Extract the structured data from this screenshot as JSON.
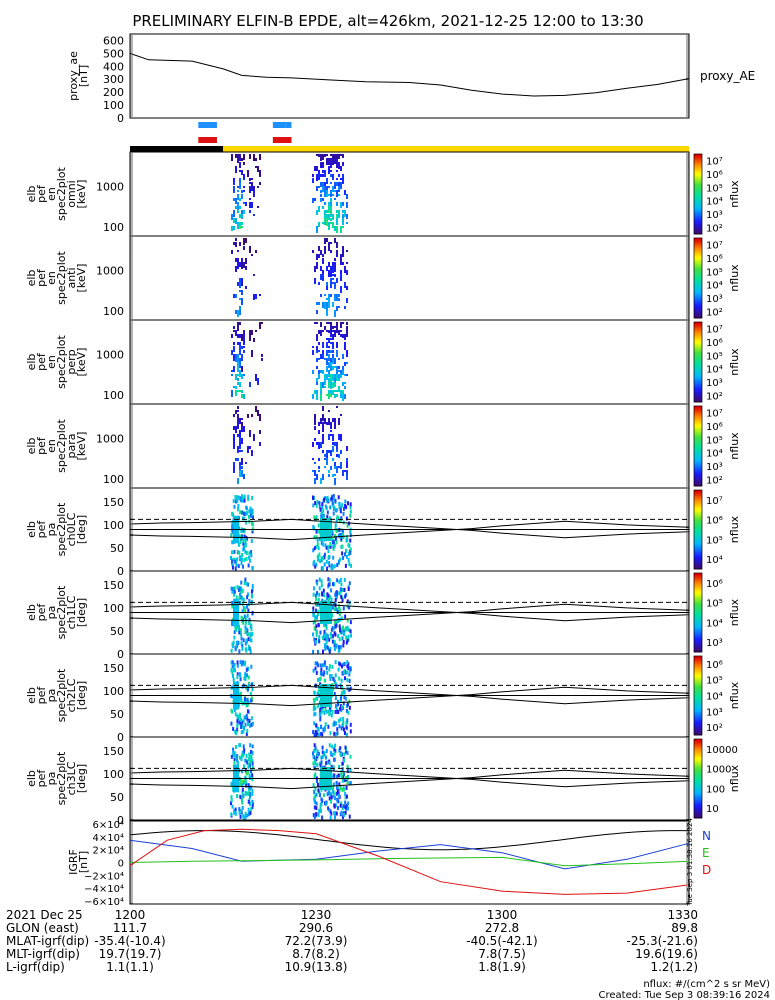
{
  "title": "PRELIMINARY ELFIN-B EPDE, alt=426km, 2021-12-25 12:00 to 13:30",
  "colors": {
    "blue_bar": "#1e90ff",
    "red_bar": "#dd1111",
    "black_bar": "#000000",
    "yellow_bar": "#ffd700",
    "N_line": "#1a3fd6",
    "E_line": "#22c21a",
    "D_line": "#dd1111",
    "text": "#000000"
  },
  "proxy_ae": {
    "ylabel_line1": "proxy_ae",
    "ylabel_line2": "[nT]",
    "legend": "proxy_AE",
    "ticks": [
      "0",
      "100",
      "200",
      "300",
      "400",
      "500",
      "600"
    ]
  },
  "spec_panels": [
    {
      "ylabel": [
        "elb",
        "pef",
        "en",
        "spec2plot",
        "omni",
        "[keV]"
      ],
      "ticks": [
        "100",
        "1000"
      ],
      "cbar_label": "nflux"
    },
    {
      "ylabel": [
        "elb",
        "pef",
        "en",
        "spec2plot",
        "anti",
        "[keV]"
      ],
      "ticks": [
        "100",
        "1000"
      ],
      "cbar_label": "nflux"
    },
    {
      "ylabel": [
        "elb",
        "pef",
        "en",
        "spec2plot",
        "perp",
        "[keV]"
      ],
      "ticks": [
        "100",
        "1000"
      ],
      "cbar_label": "nflux"
    },
    {
      "ylabel": [
        "elb",
        "pef",
        "en",
        "spec2plot",
        "para",
        "[keV]"
      ],
      "ticks": [
        "100",
        "1000"
      ],
      "cbar_label": "nflux"
    }
  ],
  "pa_panels": [
    {
      "ylabel": [
        "elb",
        "pef",
        "pa",
        "spec2plot",
        "ch0LC",
        "[deg]"
      ],
      "ticks": [
        "0",
        "50",
        "100",
        "150"
      ],
      "cbar_label": "nflux"
    },
    {
      "ylabel": [
        "elb",
        "pef",
        "pa",
        "spec2plot",
        "ch1LC",
        "[deg]"
      ],
      "ticks": [
        "0",
        "50",
        "100",
        "150"
      ],
      "cbar_label": "nflux"
    },
    {
      "ylabel": [
        "elb",
        "pef",
        "pa",
        "spec2plot",
        "ch2LC",
        "[deg]"
      ],
      "ticks": [
        "0",
        "50",
        "100",
        "150"
      ],
      "cbar_label": "nflux"
    },
    {
      "ylabel": [
        "elb",
        "pef",
        "pa",
        "spec2plot",
        "ch3LC",
        "[deg]"
      ],
      "ticks": [
        "0",
        "50",
        "100",
        "150"
      ],
      "cbar_label": "nflux"
    }
  ],
  "cbar_ticks": [
    [
      "10²",
      "10³",
      "10⁴",
      "10⁵",
      "10⁶",
      "10⁷"
    ],
    [
      "10²",
      "10³",
      "10⁴",
      "10⁵",
      "10⁶",
      "10⁷"
    ],
    [
      "10²",
      "10³",
      "10⁴",
      "10⁵",
      "10⁶",
      "10⁷"
    ],
    [
      "10²",
      "10³",
      "10⁴",
      "10⁵",
      "10⁶",
      "10⁷"
    ],
    [
      "10⁴",
      "10⁵",
      "10⁶",
      "10⁷"
    ],
    [
      "10³",
      "10⁴",
      "10⁵",
      "10⁶"
    ],
    [
      "10²",
      "10³",
      "10⁴",
      "10⁵",
      "10⁶"
    ],
    [
      "10",
      "100",
      "1000",
      "10000"
    ]
  ],
  "igrf": {
    "ylabel_line1": "IGRF",
    "ylabel_line2": "[nT]",
    "ticks": [
      "−6×10⁴",
      "−4×10⁴",
      "−2×10⁴",
      "0",
      "2×10⁴",
      "4×10⁴",
      "6×10⁴"
    ],
    "legend": [
      "N",
      "E",
      "D"
    ]
  },
  "footer": {
    "rows": [
      {
        "label": "2021 Dec 25",
        "values": [
          "1200",
          "1230",
          "1300",
          "1330"
        ]
      },
      {
        "label": "GLON (east)",
        "values": [
          "111.7",
          "290.6",
          "272.8",
          "89.8"
        ]
      },
      {
        "label": "MLAT-igrf(dip)",
        "values": [
          "-35.4(-10.4)",
          "72.2(73.9)",
          "-40.5(-42.1)",
          "-25.3(-21.6)"
        ]
      },
      {
        "label": "MLT-igrf(dip)",
        "values": [
          "19.7(19.7)",
          "8.7(8.2)",
          "7.8(7.5)",
          "19.6(19.6)"
        ]
      },
      {
        "label": "L-igrf(dip)",
        "values": [
          "1.1(1.1)",
          "10.9(13.8)",
          "1.8(1.9)",
          "1.2(1.2)"
        ]
      }
    ],
    "unit_note": "nflux: #/(cm^2 s sr MeV)",
    "created": "Created: Tue Sep  3 08:39:16 2024",
    "side_stamp": "Tue Sep  3 01:38:16 2024"
  },
  "chart_data": [
    {
      "type": "line",
      "title": "PRELIMINARY ELFIN-B EPDE, alt=426km, 2021-12-25 12:00 to 13:30",
      "ylabel": "proxy_ae [nT]",
      "ylim": [
        0,
        650
      ],
      "xlim": [
        "12:00",
        "13:30"
      ],
      "series": [
        {
          "name": "proxy_AE",
          "x": [
            "12:00",
            "12:03",
            "12:10",
            "12:15",
            "12:18",
            "12:22",
            "12:26",
            "12:32",
            "12:38",
            "12:45",
            "12:50",
            "12:55",
            "13:00",
            "13:05",
            "13:10",
            "13:15",
            "13:20",
            "13:25",
            "13:30"
          ],
          "values": [
            500,
            450,
            440,
            380,
            330,
            315,
            310,
            295,
            280,
            275,
            255,
            215,
            185,
            170,
            175,
            195,
            230,
            260,
            305
          ]
        }
      ]
    },
    {
      "type": "heatmap",
      "description_panels": [
        "omni",
        "anti",
        "perp",
        "para"
      ],
      "ylabel": "energy [keV]",
      "ylim": [
        60,
        7000
      ],
      "yscale": "log",
      "zlabel": "nflux",
      "zlim": [
        100,
        10000000
      ],
      "science_zone_bars": [
        {
          "color": "blue",
          "start": "12:11",
          "end": "12:14"
        },
        {
          "color": "blue",
          "start": "12:23",
          "end": "12:25"
        },
        {
          "color": "blue",
          "start": "12:25",
          "end": "12:26"
        },
        {
          "color": "red",
          "start": "12:11",
          "end": "12:14"
        },
        {
          "color": "red",
          "start": "12:23",
          "end": "12:26"
        }
      ],
      "orbit_bar": [
        {
          "color": "black",
          "start": "12:00",
          "end": "12:15"
        },
        {
          "color": "yellow",
          "start": "12:15",
          "end": "13:30"
        }
      ]
    },
    {
      "type": "heatmap",
      "description_panels": [
        "ch0LC",
        "ch1LC",
        "ch2LC",
        "ch3LC"
      ],
      "ylabel": "pitch angle [deg]",
      "ylim": [
        0,
        180
      ],
      "zlabel": "nflux",
      "loss_cone_lines": {
        "x": [
          "12:00",
          "12:05",
          "12:10",
          "12:20",
          "12:26",
          "12:40",
          "12:55",
          "13:00",
          "13:10",
          "13:20",
          "13:30"
        ],
        "lc_low": [
          78,
          76,
          75,
          72,
          68,
          80,
          92,
          98,
          108,
          100,
          95
        ],
        "lc_high": [
          102,
          104,
          105,
          108,
          112,
          100,
          88,
          82,
          72,
          80,
          85
        ]
      }
    },
    {
      "type": "line",
      "ylabel": "IGRF [nT]",
      "ylim": [
        -65000,
        65000
      ],
      "series": [
        {
          "name": "N",
          "x": [
            "12:00",
            "12:10",
            "12:18",
            "12:30",
            "12:40",
            "12:50",
            "13:00",
            "13:10",
            "13:20",
            "13:30"
          ],
          "values": [
            35000,
            22000,
            2000,
            5000,
            18000,
            28000,
            15000,
            -10000,
            5000,
            30000
          ]
        },
        {
          "name": "E",
          "x": [
            "12:00",
            "12:10",
            "12:20",
            "12:30",
            "12:40",
            "12:50",
            "13:00",
            "13:10",
            "13:20",
            "13:30"
          ],
          "values": [
            0,
            2000,
            3000,
            4000,
            6000,
            7000,
            8000,
            -5000,
            -2000,
            2000
          ]
        },
        {
          "name": "D",
          "x": [
            "12:00",
            "12:06",
            "12:12",
            "12:18",
            "12:24",
            "12:30",
            "12:40",
            "12:50",
            "13:00",
            "13:10",
            "13:20",
            "13:30"
          ],
          "values": [
            -5000,
            35000,
            50000,
            52000,
            50000,
            45000,
            10000,
            -30000,
            -45000,
            -50000,
            -48000,
            -35000
          ]
        }
      ]
    }
  ]
}
